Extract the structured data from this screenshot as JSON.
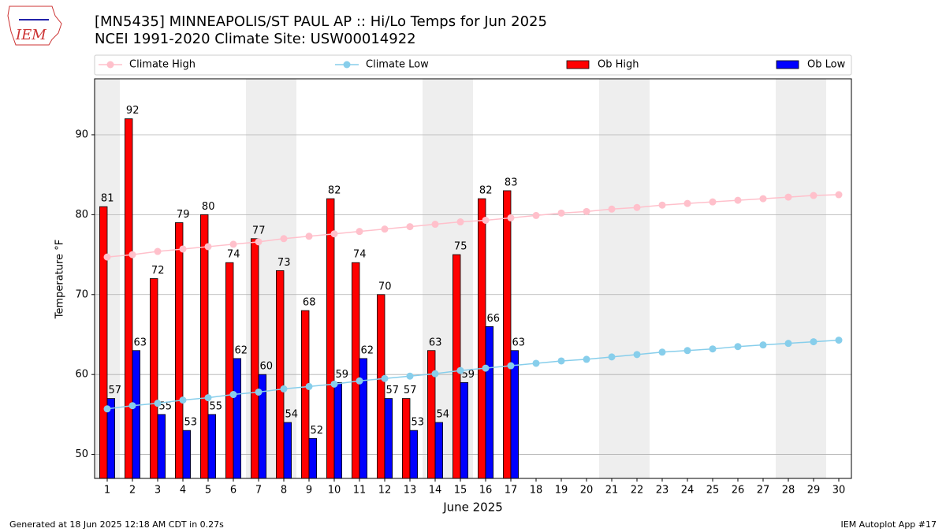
{
  "logo_text": "IEM",
  "footer": {
    "left": "Generated at 18 Jun 2025 12:18 AM CDT in 0.27s",
    "right": "IEM Autoplot App #17"
  },
  "chart_data": {
    "type": "bar",
    "title": "[MN5435] MINNEAPOLIS/ST PAUL AP :: Hi/Lo Temps for Jun 2025",
    "subtitle": "NCEI 1991-2020 Climate Site: USW00014922",
    "x_label": "June 2025",
    "y_label": "Temperature °F",
    "x": [
      1,
      2,
      3,
      4,
      5,
      6,
      7,
      8,
      9,
      10,
      11,
      12,
      13,
      14,
      15,
      16,
      17,
      18,
      19,
      20,
      21,
      22,
      23,
      24,
      25,
      26,
      27,
      28,
      29,
      30
    ],
    "xlim": [
      0.5,
      30.5
    ],
    "xticks": [
      1,
      2,
      3,
      4,
      5,
      6,
      7,
      8,
      9,
      10,
      11,
      12,
      13,
      14,
      15,
      16,
      17,
      18,
      19,
      20,
      21,
      22,
      23,
      24,
      25,
      26,
      27,
      28,
      29,
      30
    ],
    "ylim": [
      47,
      97
    ],
    "yticks": [
      50,
      60,
      70,
      80,
      90
    ],
    "grid": true,
    "shaded_days": [
      1,
      7,
      8,
      14,
      15,
      21,
      22,
      28,
      29
    ],
    "shade_color": "#eeeeee",
    "series": [
      {
        "name": "Climate High",
        "kind": "line",
        "color": "#ffc0cb",
        "values": [
          74.7,
          75.0,
          75.4,
          75.7,
          76.0,
          76.3,
          76.6,
          77.0,
          77.3,
          77.6,
          77.9,
          78.2,
          78.5,
          78.8,
          79.1,
          79.3,
          79.6,
          79.9,
          80.2,
          80.4,
          80.7,
          80.9,
          81.2,
          81.4,
          81.6,
          81.8,
          82.0,
          82.2,
          82.4,
          82.5
        ]
      },
      {
        "name": "Climate Low",
        "kind": "line",
        "color": "#87ceeb",
        "values": [
          55.7,
          56.1,
          56.4,
          56.8,
          57.1,
          57.5,
          57.8,
          58.2,
          58.5,
          58.8,
          59.2,
          59.5,
          59.8,
          60.1,
          60.5,
          60.8,
          61.1,
          61.4,
          61.7,
          61.9,
          62.2,
          62.5,
          62.8,
          63.0,
          63.2,
          63.5,
          63.7,
          63.9,
          64.1,
          64.3
        ]
      },
      {
        "name": "Ob High",
        "kind": "bar",
        "color": "#ff0000",
        "values": [
          81,
          92,
          72,
          79,
          80,
          74,
          77,
          73,
          68,
          82,
          74,
          70,
          57,
          63,
          75,
          82,
          83,
          null,
          null,
          null,
          null,
          null,
          null,
          null,
          null,
          null,
          null,
          null,
          null,
          null
        ]
      },
      {
        "name": "Ob Low",
        "kind": "bar",
        "color": "#0000ff",
        "values": [
          57,
          63,
          55,
          53,
          55,
          62,
          60,
          54,
          52,
          59,
          62,
          57,
          53,
          54,
          59,
          66,
          63,
          null,
          null,
          null,
          null,
          null,
          null,
          null,
          null,
          null,
          null,
          null,
          null,
          null
        ]
      }
    ]
  }
}
